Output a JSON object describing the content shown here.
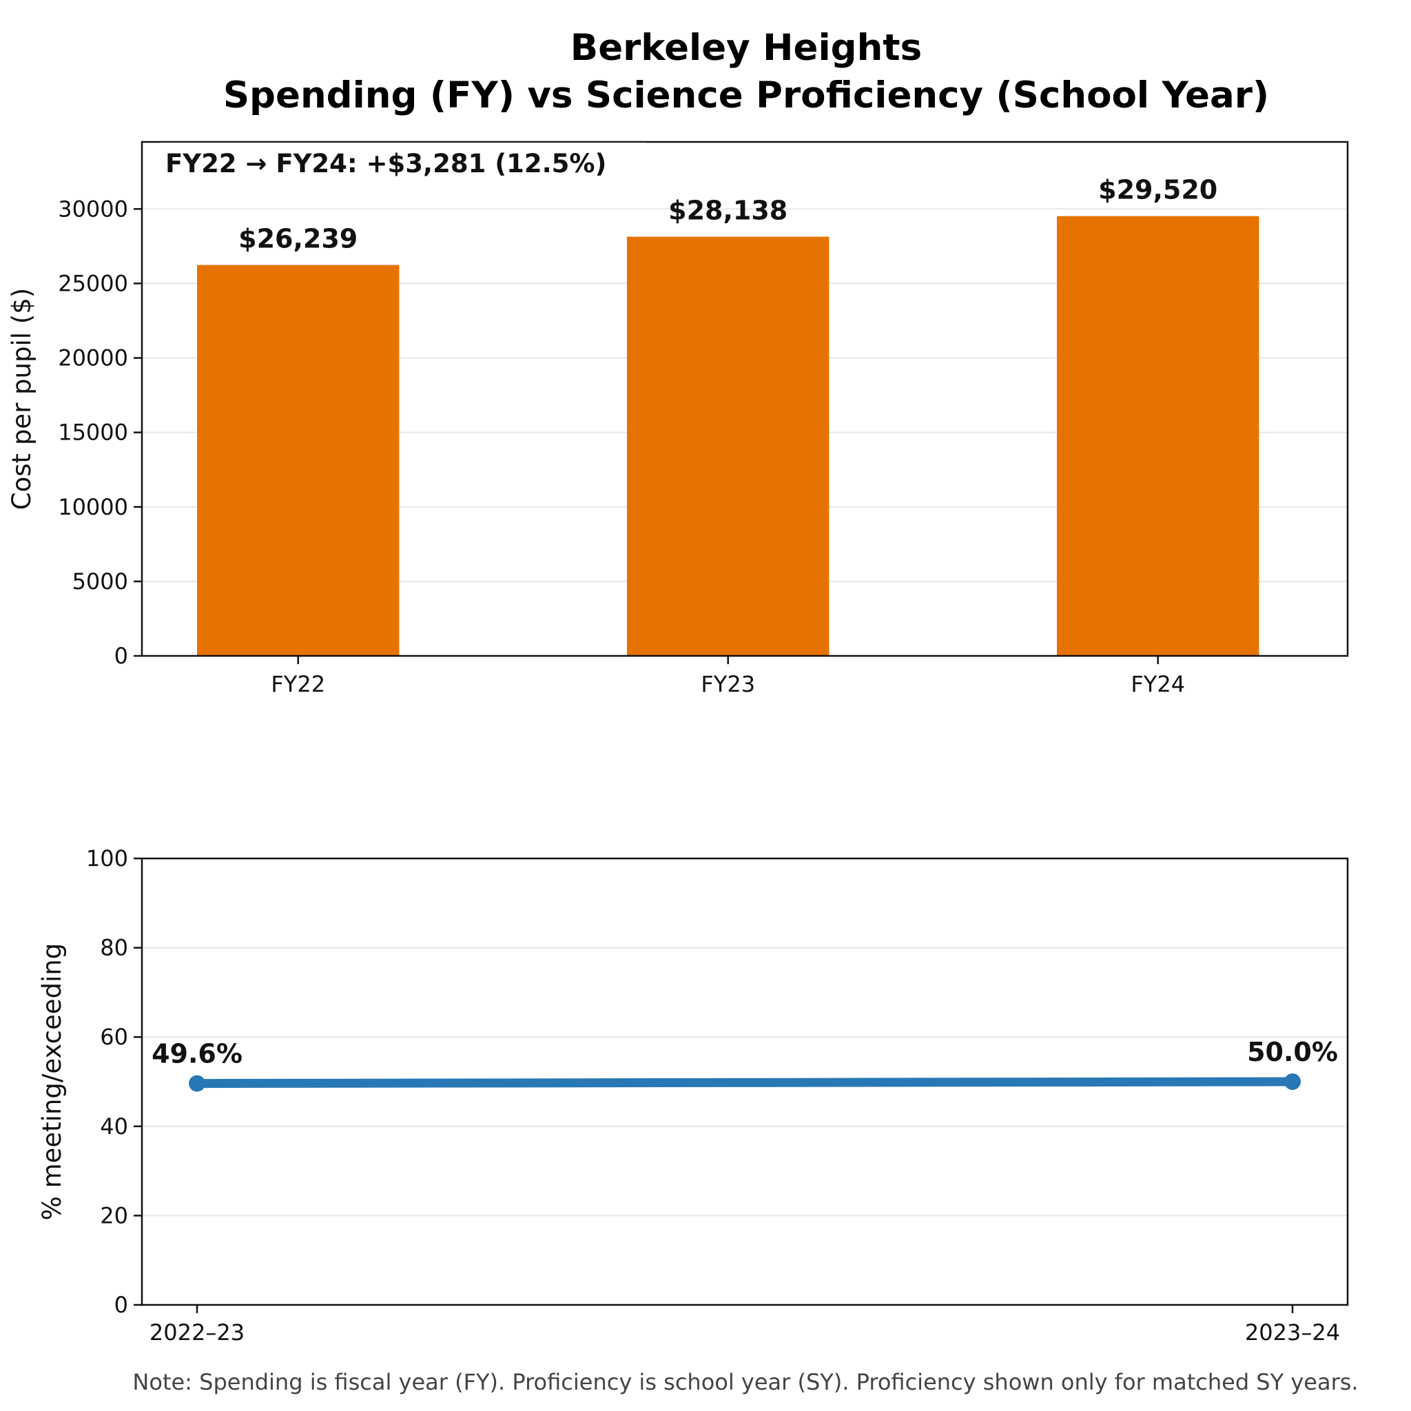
{
  "figure": {
    "title_line1": "Berkeley Heights",
    "title_line2": "Spending (FY) vs Science Proficiency (School Year)",
    "note": "Note: Spending is fiscal year (FY). Proficiency is school year (SY). Proficiency shown only for matched SY years."
  },
  "chart_data": [
    {
      "type": "bar",
      "categories": [
        "FY22",
        "FY23",
        "FY24"
      ],
      "values": [
        26239,
        28138,
        29520
      ],
      "value_labels": [
        "$26,239",
        "$28,138",
        "$29,520"
      ],
      "ylabel": "Cost per pupil ($)",
      "ylim": [
        0,
        34500
      ],
      "yticks": [
        0,
        5000,
        10000,
        15000,
        20000,
        25000,
        30000
      ],
      "annotation": "FY22 → FY24: +$3,281  (12.5%)",
      "bar_color": "#e67300",
      "grid": true
    },
    {
      "type": "line",
      "categories": [
        "2022–23",
        "2023–24"
      ],
      "values": [
        49.6,
        50.0
      ],
      "value_labels": [
        "49.6%",
        "50.0%"
      ],
      "ylabel": "% meeting/exceeding",
      "ylim": [
        0,
        100
      ],
      "yticks": [
        0,
        20,
        40,
        60,
        80,
        100
      ],
      "line_color": "#2878b5",
      "grid": true
    }
  ]
}
